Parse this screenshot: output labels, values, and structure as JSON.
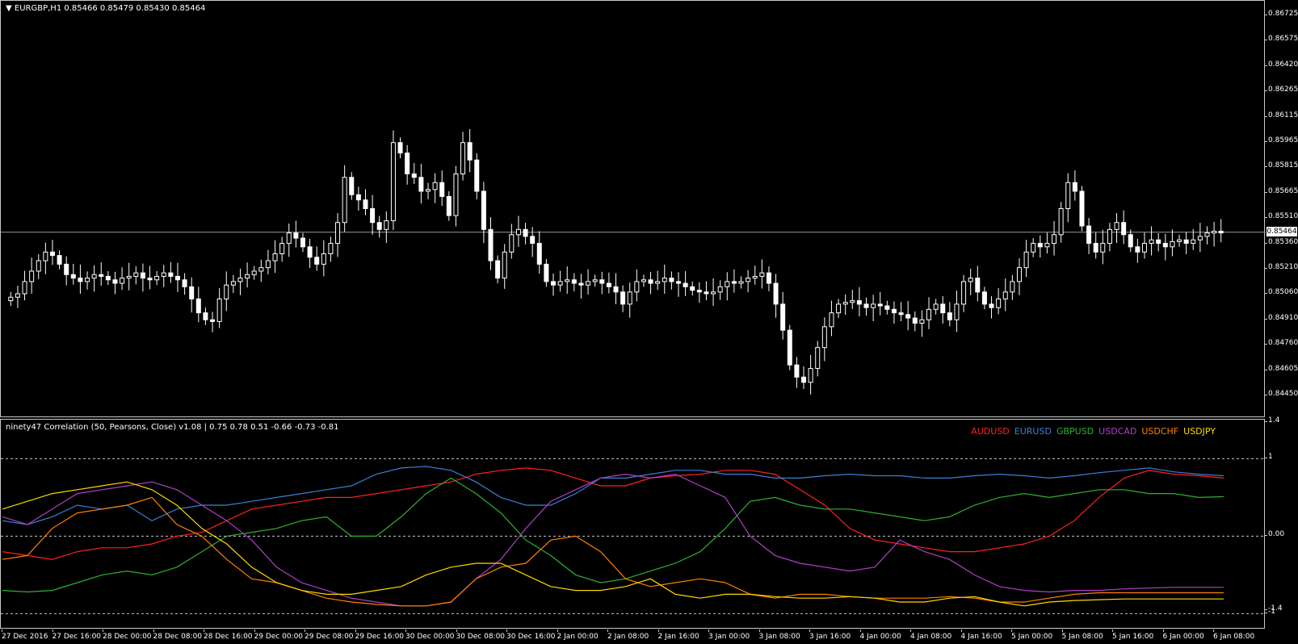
{
  "main": {
    "title": "EURGBP,H1  0.85466 0.85479 0.85430 0.85464",
    "price_ticks": [
      "0.86725",
      "0.86575",
      "0.86420",
      "0.86265",
      "0.86115",
      "0.85965",
      "0.85815",
      "0.85665",
      "0.85510",
      "0.85360",
      "0.85210",
      "0.85060",
      "0.84910",
      "0.84760",
      "0.84605",
      "0.84450"
    ],
    "current_price": "0.85464"
  },
  "indicator": {
    "title": "ninety47 Correlation (50, Pearsons, Close) v1.08 | 0.75 0.78 0.51 -0.66 -0.73 -0.81",
    "ticks": [
      "1.4",
      "1",
      "0.00",
      "-1",
      "-1.4"
    ],
    "legend": [
      {
        "label": "AUDUSD",
        "color": "#ff2020"
      },
      {
        "label": "EURUSD",
        "color": "#3a7fd5"
      },
      {
        "label": "GBPUSD",
        "color": "#30b030"
      },
      {
        "label": "USDCAD",
        "color": "#b040c8"
      },
      {
        "label": "USDCHF",
        "color": "#ff8000"
      },
      {
        "label": "USDJPY",
        "color": "#ffd800"
      }
    ]
  },
  "time_labels": [
    "27 Dec 2016",
    "27 Dec 16:00",
    "28 Dec 00:00",
    "28 Dec 08:00",
    "28 Dec 16:00",
    "29 Dec 00:00",
    "29 Dec 08:00",
    "29 Dec 16:00",
    "30 Dec 00:00",
    "30 Dec 08:00",
    "30 Dec 16:00",
    "2 Jan 00:00",
    "2 Jan 08:00",
    "2 Jan 16:00",
    "3 Jan 00:00",
    "3 Jan 08:00",
    "3 Jan 16:00",
    "4 Jan 00:00",
    "4 Jan 08:00",
    "4 Jan 16:00",
    "5 Jan 00:00",
    "5 Jan 08:00",
    "5 Jan 16:00",
    "6 Jan 00:00",
    "6 Jan 08:00"
  ],
  "chart_data": [
    {
      "type": "candlestick",
      "symbol": "EURGBP",
      "timeframe": "H1",
      "ylim": [
        0.8445,
        0.8675
      ],
      "series": [
        {
          "name": "EURGBP",
          "values": [
            0.8509,
            0.8511,
            0.8518,
            0.8524,
            0.853,
            0.8535,
            0.8533,
            0.8528,
            0.8522,
            0.852,
            0.8518,
            0.852,
            0.8522,
            0.8521,
            0.8519,
            0.8517,
            0.852,
            0.8521,
            0.8523,
            0.852,
            0.8519,
            0.8521,
            0.8523,
            0.8521,
            0.8519,
            0.8515,
            0.8508,
            0.85,
            0.8496,
            0.8495,
            0.8508,
            0.8516,
            0.8518,
            0.852,
            0.8522,
            0.8524,
            0.8526,
            0.853,
            0.8534,
            0.854,
            0.8546,
            0.8543,
            0.8538,
            0.8532,
            0.8528,
            0.8534,
            0.854,
            0.8552,
            0.8578,
            0.8568,
            0.8565,
            0.856,
            0.8552,
            0.8548,
            0.8553,
            0.8598,
            0.8592,
            0.858,
            0.8578,
            0.857,
            0.8571,
            0.8575,
            0.8567,
            0.8556,
            0.858,
            0.8598,
            0.8588,
            0.857,
            0.8548,
            0.853,
            0.852,
            0.8535,
            0.8545,
            0.8548,
            0.8544,
            0.854,
            0.8528,
            0.8518,
            0.8516,
            0.8518,
            0.8519,
            0.8517,
            0.8516,
            0.8518,
            0.8519,
            0.8517,
            0.8515,
            0.8512,
            0.8505,
            0.8512,
            0.8518,
            0.8519,
            0.8517,
            0.8518,
            0.852,
            0.8518,
            0.8517,
            0.8515,
            0.8513,
            0.8512,
            0.8511,
            0.8512,
            0.8515,
            0.8518,
            0.8517,
            0.8518,
            0.852,
            0.8521,
            0.8523,
            0.8517,
            0.8505,
            0.849,
            0.847,
            0.8463,
            0.846,
            0.8468,
            0.848,
            0.8492,
            0.85,
            0.8505,
            0.8506,
            0.8507,
            0.8505,
            0.8503,
            0.8505,
            0.8504,
            0.8502,
            0.85,
            0.8499,
            0.8497,
            0.8494,
            0.8496,
            0.8502,
            0.8505,
            0.85,
            0.8496,
            0.8505,
            0.8518,
            0.852,
            0.8512,
            0.8505,
            0.8503,
            0.8508,
            0.8512,
            0.8518,
            0.8526,
            0.8535,
            0.854,
            0.8538,
            0.854,
            0.8545,
            0.856,
            0.8575,
            0.857,
            0.855,
            0.854,
            0.8535,
            0.854,
            0.8548,
            0.8552,
            0.8545,
            0.8538,
            0.8535,
            0.854,
            0.8542,
            0.854,
            0.8538,
            0.8541,
            0.8542,
            0.854,
            0.8542,
            0.8544,
            0.8546,
            0.8547,
            0.8546
          ]
        }
      ]
    },
    {
      "type": "line",
      "title": "ninety47 Correlation (50, Pearsons, Close) v1.08",
      "ylim": [
        -1.1,
        1.4
      ],
      "series": [
        {
          "name": "AUDUSD",
          "values": [
            -0.2,
            -0.25,
            -0.3,
            -0.2,
            -0.15,
            -0.15,
            -0.1,
            0.0,
            0.05,
            0.2,
            0.35,
            0.4,
            0.45,
            0.5,
            0.5,
            0.55,
            0.6,
            0.65,
            0.7,
            0.8,
            0.85,
            0.88,
            0.85,
            0.75,
            0.65,
            0.65,
            0.75,
            0.78,
            0.8,
            0.85,
            0.85,
            0.8,
            0.6,
            0.4,
            0.1,
            -0.05,
            -0.1,
            -0.15,
            -0.2,
            -0.2,
            -0.15,
            -0.1,
            0.0,
            0.2,
            0.5,
            0.75,
            0.85,
            0.8,
            0.78,
            0.75
          ]
        },
        {
          "name": "EURUSD",
          "values": [
            0.2,
            0.15,
            0.25,
            0.4,
            0.35,
            0.4,
            0.2,
            0.35,
            0.4,
            0.4,
            0.45,
            0.5,
            0.55,
            0.6,
            0.65,
            0.8,
            0.88,
            0.9,
            0.85,
            0.7,
            0.5,
            0.4,
            0.4,
            0.55,
            0.75,
            0.75,
            0.8,
            0.85,
            0.85,
            0.8,
            0.8,
            0.75,
            0.75,
            0.78,
            0.8,
            0.78,
            0.78,
            0.75,
            0.75,
            0.78,
            0.8,
            0.78,
            0.75,
            0.78,
            0.82,
            0.85,
            0.88,
            0.83,
            0.8,
            0.78
          ]
        },
        {
          "name": "GBPUSD",
          "values": [
            -0.7,
            -0.72,
            -0.7,
            -0.6,
            -0.5,
            -0.45,
            -0.5,
            -0.4,
            -0.2,
            0.0,
            0.05,
            0.1,
            0.2,
            0.25,
            0.0,
            0.0,
            0.25,
            0.55,
            0.75,
            0.55,
            0.3,
            -0.05,
            -0.25,
            -0.5,
            -0.6,
            -0.55,
            -0.45,
            -0.35,
            -0.2,
            0.1,
            0.45,
            0.5,
            0.4,
            0.35,
            0.35,
            0.3,
            0.25,
            0.2,
            0.25,
            0.4,
            0.5,
            0.55,
            0.5,
            0.55,
            0.6,
            0.6,
            0.55,
            0.55,
            0.5,
            0.51
          ]
        },
        {
          "name": "USDCAD",
          "values": [
            0.25,
            0.15,
            0.35,
            0.55,
            0.6,
            0.65,
            0.7,
            0.6,
            0.4,
            0.2,
            -0.05,
            -0.4,
            -0.6,
            -0.7,
            -0.8,
            -0.85,
            -0.9,
            -0.9,
            -0.85,
            -0.55,
            -0.3,
            0.1,
            0.45,
            0.6,
            0.75,
            0.8,
            0.75,
            0.8,
            0.65,
            0.5,
            0.0,
            -0.25,
            -0.35,
            -0.4,
            -0.45,
            -0.4,
            -0.05,
            -0.2,
            -0.3,
            -0.5,
            -0.65,
            -0.7,
            -0.72,
            -0.7,
            -0.7,
            -0.68,
            -0.67,
            -0.66,
            -0.66,
            -0.66
          ]
        },
        {
          "name": "USDCHF",
          "values": [
            -0.3,
            -0.25,
            0.1,
            0.3,
            0.35,
            0.4,
            0.5,
            0.15,
            0.0,
            -0.3,
            -0.55,
            -0.6,
            -0.7,
            -0.8,
            -0.85,
            -0.88,
            -0.9,
            -0.9,
            -0.85,
            -0.55,
            -0.4,
            -0.35,
            -0.05,
            0.0,
            -0.2,
            -0.55,
            -0.65,
            -0.6,
            -0.55,
            -0.6,
            -0.75,
            -0.8,
            -0.75,
            -0.75,
            -0.78,
            -0.8,
            -0.8,
            -0.8,
            -0.78,
            -0.8,
            -0.85,
            -0.85,
            -0.8,
            -0.75,
            -0.73,
            -0.73,
            -0.73,
            -0.73,
            -0.73,
            -0.73
          ]
        },
        {
          "name": "USDJPY",
          "values": [
            0.35,
            0.45,
            0.55,
            0.6,
            0.65,
            0.7,
            0.6,
            0.4,
            0.1,
            -0.1,
            -0.4,
            -0.6,
            -0.7,
            -0.75,
            -0.75,
            -0.7,
            -0.65,
            -0.5,
            -0.4,
            -0.35,
            -0.35,
            -0.5,
            -0.65,
            -0.7,
            -0.7,
            -0.65,
            -0.55,
            -0.75,
            -0.8,
            -0.75,
            -0.75,
            -0.78,
            -0.8,
            -0.8,
            -0.78,
            -0.8,
            -0.85,
            -0.85,
            -0.8,
            -0.78,
            -0.85,
            -0.9,
            -0.85,
            -0.83,
            -0.82,
            -0.81,
            -0.81,
            -0.81,
            -0.81,
            -0.81
          ]
        }
      ]
    }
  ]
}
